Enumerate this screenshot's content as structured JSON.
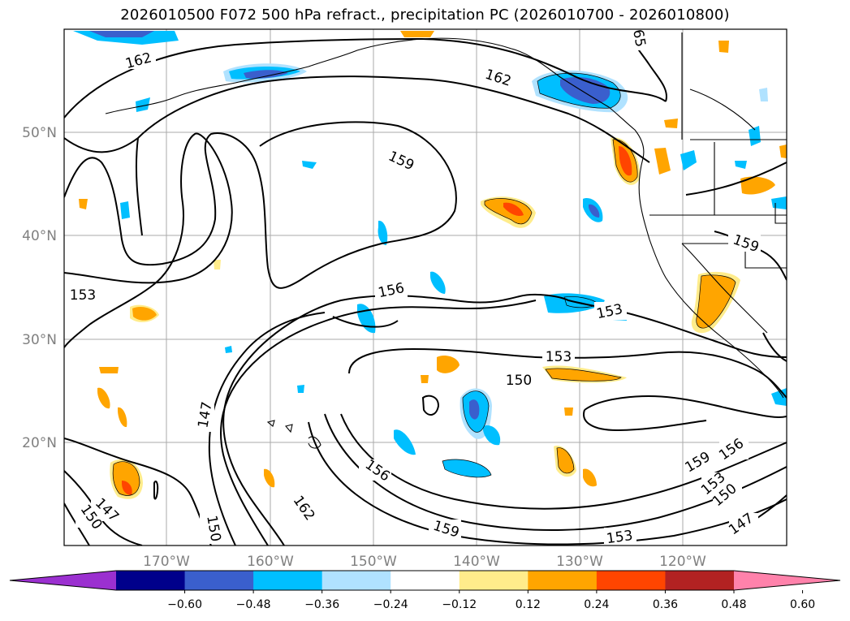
{
  "title": "2026010500 F072 500 hPa refract., precipitation PC (2026010700 - 2026010800)",
  "lat_labels": [
    "50°N",
    "40°N",
    "30°N",
    "20°N"
  ],
  "lon_labels": [
    "170°W",
    "160°W",
    "150°W",
    "140°W",
    "130°W",
    "120°W"
  ],
  "contour_labels": [
    "162",
    "162",
    "65",
    "159",
    "159",
    "156",
    "153",
    "153",
    "153",
    "150",
    "147",
    "147",
    "150",
    "150",
    "156",
    "162",
    "159",
    "153",
    "159",
    "156",
    "153",
    "150",
    "147"
  ],
  "colorbar": {
    "ticks": [
      "−0.60",
      "−0.48",
      "−0.36",
      "−0.24",
      "−0.12",
      "0.12",
      "0.24",
      "0.36",
      "0.48",
      "0.60"
    ],
    "colors": [
      "#9b30d0",
      "#00008b",
      "#3a5fcd",
      "#00bfff",
      "#b0e2ff",
      "#ffffff",
      "#ffec8b",
      "#ffa500",
      "#ff4500",
      "#b22222",
      "#ff82ab"
    ]
  }
}
